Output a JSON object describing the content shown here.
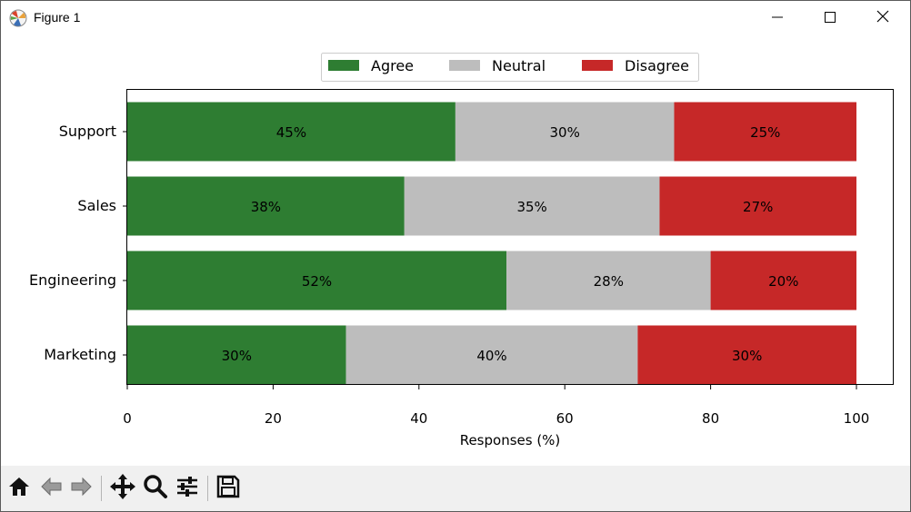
{
  "window": {
    "title": "Figure 1"
  },
  "toolbar": {
    "tools": [
      "home-icon",
      "back-icon",
      "forward-icon",
      "pan-icon",
      "zoom-icon",
      "configure-subplots-icon",
      "save-icon"
    ]
  },
  "colors": {
    "agree": "#2e7d32",
    "neutral": "#bdbdbd",
    "disagree": "#c62828"
  },
  "chart_data": {
    "type": "bar",
    "orientation": "horizontal",
    "stacked": true,
    "categories": [
      "Marketing",
      "Engineering",
      "Sales",
      "Support"
    ],
    "series": [
      {
        "name": "Agree",
        "values": [
          30,
          52,
          38,
          45
        ],
        "color": "#2e7d32"
      },
      {
        "name": "Neutral",
        "values": [
          40,
          28,
          35,
          30
        ],
        "color": "#bdbdbd"
      },
      {
        "name": "Disagree",
        "values": [
          30,
          20,
          27,
          25
        ],
        "color": "#c62828"
      }
    ],
    "data_labels": [
      [
        "30%",
        "52%",
        "38%",
        "45%"
      ],
      [
        "40%",
        "28%",
        "35%",
        "30%"
      ],
      [
        "30%",
        "20%",
        "27%",
        "25%"
      ]
    ],
    "title": "",
    "xlabel": "Responses (%)",
    "ylabel": "",
    "xlim": [
      0,
      100
    ],
    "xticks": [
      "0",
      "20",
      "40",
      "60",
      "80",
      "100"
    ],
    "grid": false,
    "legend_position": "top-center"
  }
}
